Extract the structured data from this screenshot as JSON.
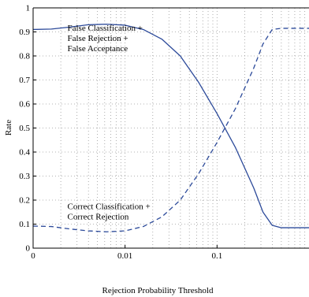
{
  "chart_data": {
    "type": "line",
    "title": "",
    "xlabel": "Rejection Probability Threshold",
    "ylabel": "Rate",
    "x_scale": "log",
    "xlim": [
      0.001,
      1
    ],
    "ylim": [
      0,
      1
    ],
    "x_ticks": [
      {
        "value": 0.001,
        "label": "0"
      },
      {
        "value": 0.01,
        "label": "0.01"
      },
      {
        "value": 0.1,
        "label": "0.1"
      }
    ],
    "y_ticks": [
      {
        "value": 0,
        "label": "0"
      },
      {
        "value": 0.1,
        "label": "0.1"
      },
      {
        "value": 0.2,
        "label": "0.2"
      },
      {
        "value": 0.3,
        "label": "0.3"
      },
      {
        "value": 0.4,
        "label": "0.4"
      },
      {
        "value": 0.5,
        "label": "0.5"
      },
      {
        "value": 0.6,
        "label": "0.6"
      },
      {
        "value": 0.7,
        "label": "0.7"
      },
      {
        "value": 0.8,
        "label": "0.8"
      },
      {
        "value": 0.9,
        "label": "0.9"
      },
      {
        "value": 1,
        "label": "1"
      }
    ],
    "grid": true,
    "color": "#2c4a9a",
    "series": [
      {
        "id": "false",
        "style": "solid",
        "x": [
          0.001,
          0.00158,
          0.00251,
          0.00398,
          0.00631,
          0.01,
          0.0158,
          0.0251,
          0.0398,
          0.0631,
          0.1,
          0.158,
          0.251,
          0.316,
          0.398,
          0.5,
          0.631,
          0.794,
          1
        ],
        "y": [
          0.91,
          0.912,
          0.92,
          0.93,
          0.932,
          0.928,
          0.91,
          0.87,
          0.8,
          0.69,
          0.56,
          0.42,
          0.25,
          0.15,
          0.095,
          0.085,
          0.085,
          0.085,
          0.085
        ]
      },
      {
        "id": "correct",
        "style": "dashed",
        "x": [
          0.001,
          0.00158,
          0.00251,
          0.00398,
          0.00631,
          0.01,
          0.0158,
          0.0251,
          0.0398,
          0.0631,
          0.1,
          0.158,
          0.251,
          0.316,
          0.398,
          0.5,
          0.631,
          0.794,
          1
        ],
        "y": [
          0.092,
          0.09,
          0.08,
          0.072,
          0.068,
          0.072,
          0.09,
          0.13,
          0.2,
          0.31,
          0.44,
          0.58,
          0.75,
          0.85,
          0.91,
          0.915,
          0.915,
          0.915,
          0.915
        ]
      }
    ],
    "annotations": [
      {
        "id": "false",
        "lines": [
          "False Classification +",
          "False Rejection +",
          "False Acceptance"
        ],
        "x": 0.00236,
        "y": 0.905
      },
      {
        "id": "correct",
        "lines": [
          "Correct Classification +",
          "Correct Rejection"
        ],
        "x": 0.00236,
        "y": 0.163
      }
    ]
  }
}
